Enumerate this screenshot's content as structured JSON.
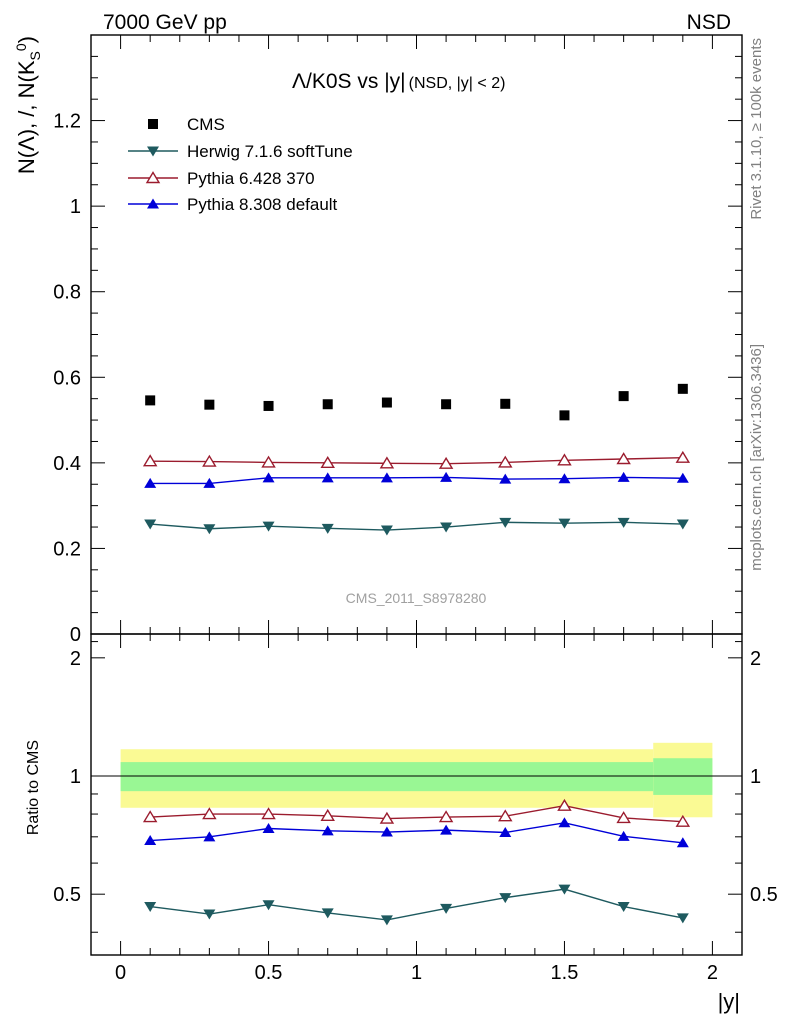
{
  "header": {
    "energy_label": "7000 GeV pp",
    "process_label": "NSD"
  },
  "side_labels": {
    "rivet": "Rivet 3.1.10, ≥ 100k events",
    "mcplots": "mcplots.cern.ch [arXiv:1306.3436]"
  },
  "watermark": "CMS_2011_S8978280",
  "plot_title": {
    "main": "Λ/K0S vs |y|",
    "sub": "(NSD, |y| < 2)"
  },
  "colors": {
    "cms": "#000000",
    "herwig": "#1e5a5f",
    "pythia6": "#9b1c2e",
    "pythia8": "#0000d8",
    "band_inner": "#99f794",
    "band_outer": "#fafa94"
  },
  "chart_data": [
    {
      "type": "scatter",
      "panel": "main",
      "ylabel": "N(Λ), /, N(K_S^0)",
      "xlim": [
        -0.1,
        2.1
      ],
      "ylim": [
        0,
        1.4
      ],
      "yticks": [
        {
          "value": 0,
          "label": "0"
        },
        {
          "value": 0.2,
          "label": "0.2"
        },
        {
          "value": 0.4,
          "label": "0.4"
        },
        {
          "value": 0.6,
          "label": "0.6"
        },
        {
          "value": 0.8,
          "label": "0.8"
        },
        {
          "value": 1.0,
          "label": "1"
        },
        {
          "value": 1.2,
          "label": "1.2"
        }
      ],
      "x": [
        0.1,
        0.3,
        0.5,
        0.7,
        0.9,
        1.1,
        1.3,
        1.5,
        1.7,
        1.9
      ],
      "series": [
        {
          "key": "cms",
          "name": "CMS",
          "marker": "square",
          "line": false,
          "values": [
            0.546,
            0.536,
            0.533,
            0.537,
            0.541,
            0.537,
            0.538,
            0.511,
            0.556,
            0.573
          ]
        },
        {
          "key": "herwig",
          "name": "Herwig 7.1.6 softTune",
          "marker": "triangle-down",
          "line": true,
          "values": [
            0.257,
            0.246,
            0.252,
            0.247,
            0.243,
            0.25,
            0.261,
            0.259,
            0.261,
            0.257
          ]
        },
        {
          "key": "pythia6",
          "name": "Pythia 6.428 370",
          "marker": "triangle-open",
          "line": true,
          "values": [
            0.404,
            0.403,
            0.401,
            0.4,
            0.399,
            0.398,
            0.401,
            0.406,
            0.409,
            0.412
          ]
        },
        {
          "key": "pythia8",
          "name": "Pythia 8.308 default",
          "marker": "triangle-up",
          "line": true,
          "values": [
            0.352,
            0.352,
            0.365,
            0.365,
            0.365,
            0.366,
            0.362,
            0.363,
            0.366,
            0.364
          ]
        }
      ]
    },
    {
      "type": "line",
      "panel": "ratio",
      "xlabel": "|y|",
      "ylabel": "Ratio to CMS",
      "xlim": [
        -0.1,
        2.1
      ],
      "ylim": [
        0.35,
        2.3
      ],
      "xticks": [
        {
          "value": 0,
          "label": "0"
        },
        {
          "value": 0.5,
          "label": "0.5"
        },
        {
          "value": 1,
          "label": "1"
        },
        {
          "value": 1.5,
          "label": "1.5"
        },
        {
          "value": 2,
          "label": "2"
        }
      ],
      "yticks": [
        {
          "value": 0.5,
          "label": "0.5"
        },
        {
          "value": 1,
          "label": "1"
        },
        {
          "value": 2,
          "label": "2"
        }
      ],
      "bands": [
        {
          "x_range": [
            0,
            1.8
          ],
          "inner": [
            0.915,
            1.085
          ],
          "outer": [
            0.83,
            1.17
          ]
        },
        {
          "x_range": [
            1.8,
            2.0
          ],
          "inner": [
            0.895,
            1.11
          ],
          "outer": [
            0.785,
            1.215
          ]
        }
      ],
      "x": [
        0.1,
        0.3,
        0.5,
        0.7,
        0.9,
        1.1,
        1.3,
        1.5,
        1.7,
        1.9
      ],
      "series": [
        {
          "key": "herwig",
          "name": "Herwig 7.1.6 softTune",
          "marker": "triangle-down",
          "values": [
            0.465,
            0.445,
            0.47,
            0.448,
            0.43,
            0.46,
            0.49,
            0.515,
            0.465,
            0.435
          ]
        },
        {
          "key": "pythia6",
          "name": "Pythia 6.428 370",
          "marker": "triangle-open",
          "values": [
            0.786,
            0.8,
            0.8,
            0.792,
            0.779,
            0.786,
            0.79,
            0.84,
            0.782,
            0.765
          ]
        },
        {
          "key": "pythia8",
          "name": "Pythia 8.308 default",
          "marker": "triangle-up",
          "values": [
            0.685,
            0.7,
            0.735,
            0.725,
            0.72,
            0.728,
            0.718,
            0.76,
            0.702,
            0.676
          ]
        }
      ]
    }
  ]
}
